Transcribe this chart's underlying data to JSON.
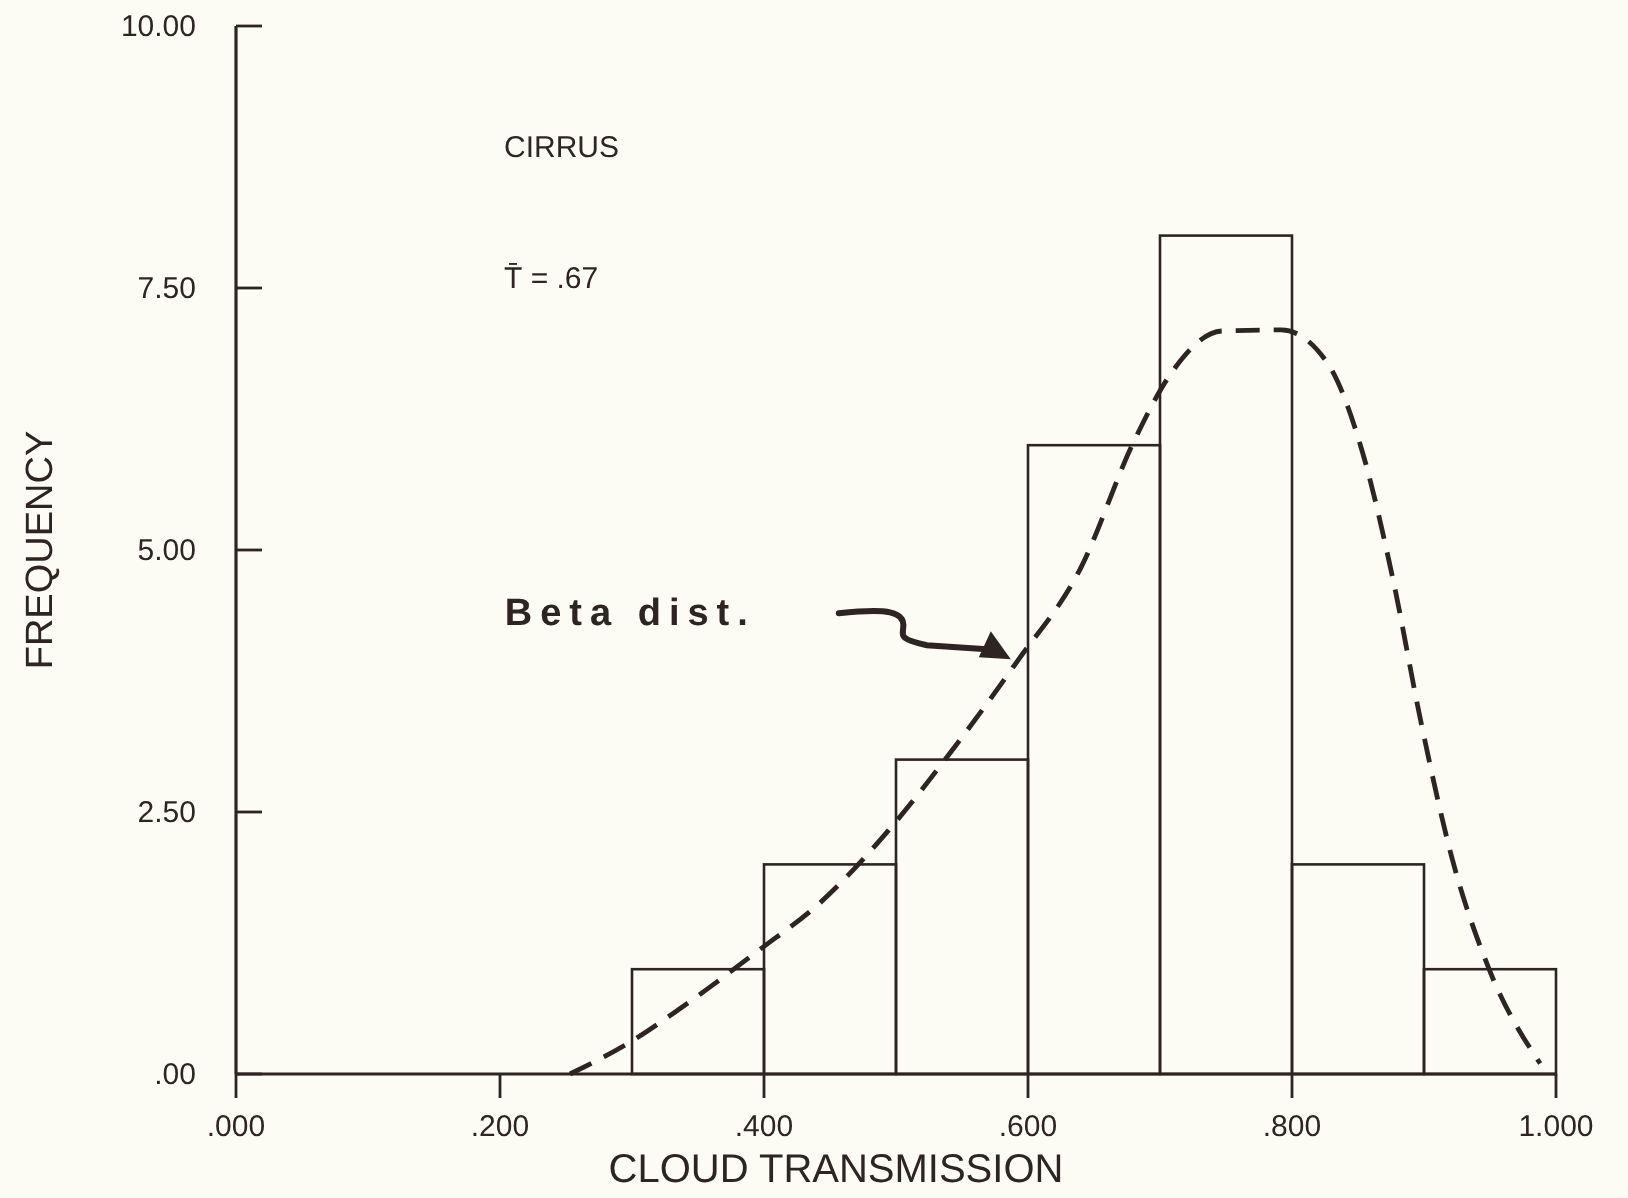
{
  "chart_data": {
    "type": "histogram",
    "xlabel": "CLOUD TRANSMISSION",
    "ylabel": "FREQUENCY",
    "bins": [
      0.3,
      0.4,
      0.5,
      0.6,
      0.7,
      0.8,
      0.9,
      1.0
    ],
    "values": [
      1,
      2,
      3,
      6,
      8,
      2,
      1
    ],
    "color": "#2e2424",
    "series": [
      {
        "type": "line",
        "line_style": "dashed",
        "color": "#2e2424",
        "x": [
          0.253,
          0.298,
          0.337,
          0.396,
          0.443,
          0.494,
          0.545,
          0.592,
          0.64,
          0.68,
          0.707,
          0.747,
          0.792,
          0.826,
          0.853,
          0.876,
          0.898,
          0.921,
          0.949,
          0.988
        ],
        "values": [
          0,
          0.3,
          0.63,
          1.18,
          1.64,
          2.32,
          3.13,
          3.94,
          4.83,
          6.03,
          6.66,
          7.09,
          7.1,
          6.8,
          5.95,
          4.75,
          3.34,
          2.07,
          1.01,
          0.1
        ]
      }
    ],
    "xlim": [
      0,
      1
    ],
    "ylim": [
      0,
      10
    ],
    "xticks": [
      {
        "value": 0,
        "label": ".000"
      },
      {
        "value": 0.2,
        "label": ".200"
      },
      {
        "value": 0.4,
        "label": ".400"
      },
      {
        "value": 0.6,
        "label": ".600"
      },
      {
        "value": 0.8,
        "label": ".800"
      },
      {
        "value": 1,
        "label": "1.000"
      }
    ],
    "yticks": [
      {
        "value": 0,
        "label": ".00"
      },
      {
        "value": 2.5,
        "label": "2.50"
      },
      {
        "value": 5,
        "label": "5.00"
      },
      {
        "value": 7.5,
        "label": "7.50"
      },
      {
        "value": 10,
        "label": "10.00"
      }
    ],
    "grid": false,
    "annotations": [
      "CIRRUS",
      "T̄ = .67",
      "Beta dist."
    ]
  }
}
